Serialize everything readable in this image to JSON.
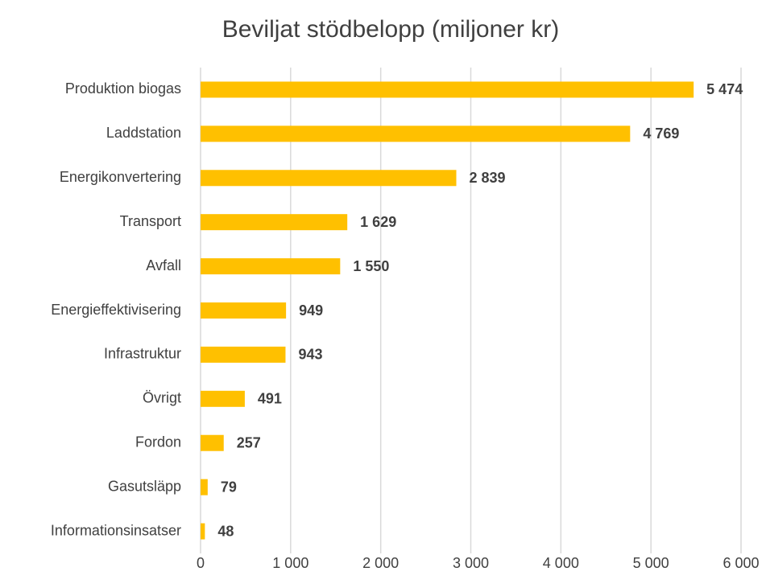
{
  "chart_data": {
    "type": "bar",
    "orientation": "horizontal",
    "title": "Beviljat stödbelopp (miljoner kr)",
    "categories": [
      "Produktion biogas",
      "Laddstation",
      "Energikonvertering",
      "Transport",
      "Avfall",
      "Energieffektivisering",
      "Infrastruktur",
      "Övrigt",
      "Fordon",
      "Gasutsläpp",
      "Informationsinsatser"
    ],
    "values": [
      5474,
      4769,
      2839,
      1629,
      1550,
      949,
      943,
      491,
      257,
      79,
      48
    ],
    "value_labels": [
      "5 474",
      "4 769",
      "2 839",
      "1 629",
      "1 550",
      "949",
      "943",
      "491",
      "257",
      "79",
      "48"
    ],
    "color": "#FFC000",
    "xlim": [
      0,
      6000
    ],
    "xticks": [
      0,
      {
        "value": 1000,
        "label": "1 000"
      },
      {
        "value": 2000,
        "label": "2 000"
      },
      {
        "value": 3000,
        "label": "3 000"
      },
      {
        "value": 4000,
        "label": "4 000"
      },
      {
        "value": 5000,
        "label": "5 000"
      },
      {
        "value": 6000,
        "label": "6 000"
      }
    ],
    "grid": true
  }
}
